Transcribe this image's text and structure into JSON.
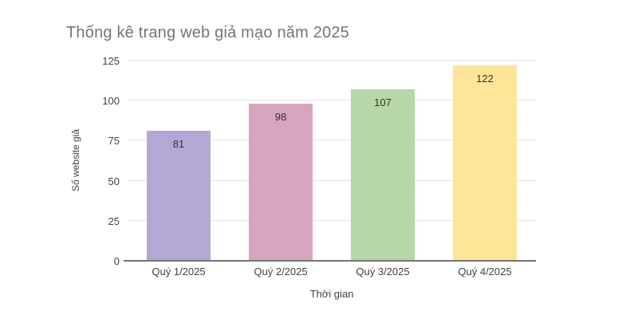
{
  "chart_data": {
    "type": "bar",
    "title": "Thống kê trang web giả mạo năm 2025",
    "categories": [
      "Quý 1/2025",
      "Quý 2/2025",
      "Quý 3/2025",
      "Quý 4/2025"
    ],
    "values": [
      81,
      98,
      107,
      122
    ],
    "data_labels": [
      "81",
      "98",
      "107",
      "122"
    ],
    "bar_colors": [
      "#B4A7D6",
      "#D5A6BD",
      "#B6D7A8",
      "#FFE599"
    ],
    "xlabel": "Thời gian",
    "ylabel": "Số website giả",
    "ylim": [
      0,
      125
    ],
    "yticks": [
      0,
      25,
      50,
      75,
      100,
      125
    ],
    "grid": true,
    "legend": false,
    "colors": {
      "title_text": "#757575",
      "axis_text": "#424242",
      "value_label_text": "#333333",
      "gridline": "#e3e3e3",
      "axis_line": "#757575",
      "background": "#ffffff"
    }
  }
}
